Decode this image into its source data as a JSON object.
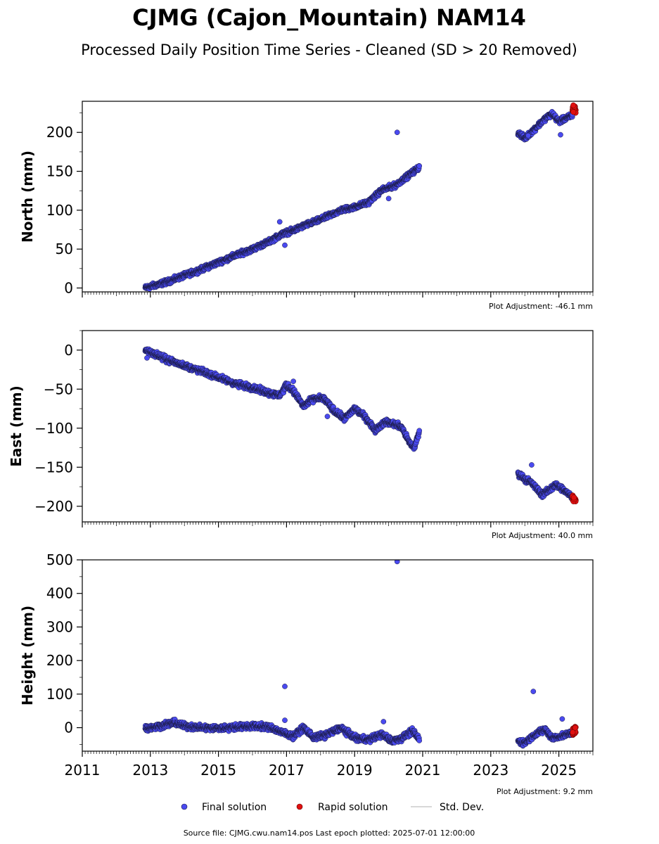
{
  "title": "CJMG (Cajon_Mountain) NAM14",
  "subtitle": "Processed Daily Position Time Series - Cleaned (SD > 20 Removed)",
  "legend": {
    "final": "Final solution",
    "rapid": "Rapid solution",
    "std": "Std. Dev."
  },
  "footer": "Source file: CJMG.cwu.nam14.pos  Last epoch plotted: 2025-07-01 12:00:00",
  "colors": {
    "final": "#4a4af0",
    "final_edge": "#1a1a40",
    "rapid": "#e01010",
    "std": "#cccccc"
  },
  "chart_data": [
    {
      "type": "scatter",
      "ylabel": "North (mm)",
      "note": "Plot Adjustment: -46.1 mm",
      "xlim": [
        2011,
        2026
      ],
      "ylim": [
        -5,
        240
      ],
      "x_ticks": [
        2011,
        2013,
        2015,
        2017,
        2019,
        2021,
        2023,
        2025
      ],
      "y_ticks": [
        0,
        50,
        100,
        150,
        200
      ],
      "show_x_labels": false,
      "series": [
        {
          "name": "Final solution",
          "role": "final",
          "anchors": [
            [
              2012.85,
              0
            ],
            [
              2013.5,
              8
            ],
            [
              2014.0,
              16
            ],
            [
              2014.5,
              24
            ],
            [
              2015.0,
              33
            ],
            [
              2015.5,
              42
            ],
            [
              2016.0,
              50
            ],
            [
              2016.5,
              60
            ],
            [
              2016.9,
              70
            ],
            [
              2017.2,
              74
            ],
            [
              2017.5,
              80
            ],
            [
              2018.0,
              88
            ],
            [
              2018.6,
              100
            ],
            [
              2019.0,
              104
            ],
            [
              2019.4,
              110
            ],
            [
              2019.8,
              126
            ],
            [
              2020.2,
              132
            ],
            [
              2020.5,
              142
            ],
            [
              2020.8,
              152
            ],
            [
              2020.9,
              155
            ]
          ],
          "anchors2": [
            [
              2023.8,
              200
            ],
            [
              2024.0,
              192
            ],
            [
              2024.3,
              205
            ],
            [
              2024.6,
              218
            ],
            [
              2024.8,
              224
            ],
            [
              2025.0,
              214
            ],
            [
              2025.2,
              218
            ],
            [
              2025.4,
              222
            ]
          ],
          "outliers": [
            [
              2020.25,
              200
            ],
            [
              2016.8,
              85
            ],
            [
              2016.95,
              55
            ],
            [
              2020.0,
              115
            ],
            [
              2024.1,
              196
            ],
            [
              2025.05,
              197
            ]
          ]
        },
        {
          "name": "Rapid solution",
          "role": "rapid",
          "x_range": [
            2025.4,
            2025.5
          ],
          "y_range": [
            225,
            235
          ]
        }
      ]
    },
    {
      "type": "scatter",
      "ylabel": "East (mm)",
      "note": "Plot Adjustment: 40.0 mm",
      "xlim": [
        2011,
        2026
      ],
      "ylim": [
        -220,
        25
      ],
      "x_ticks": [
        2011,
        2013,
        2015,
        2017,
        2019,
        2021,
        2023,
        2025
      ],
      "y_ticks": [
        0,
        -50,
        -100,
        -150,
        -200
      ],
      "show_x_labels": false,
      "series": [
        {
          "name": "Final solution",
          "role": "final",
          "anchors": [
            [
              2012.85,
              0
            ],
            [
              2013.5,
              -12
            ],
            [
              2014.0,
              -20
            ],
            [
              2014.5,
              -27
            ],
            [
              2015.0,
              -35
            ],
            [
              2015.5,
              -43
            ],
            [
              2016.0,
              -48
            ],
            [
              2016.5,
              -55
            ],
            [
              2016.8,
              -58
            ],
            [
              2017.0,
              -45
            ],
            [
              2017.2,
              -52
            ],
            [
              2017.5,
              -72
            ],
            [
              2017.8,
              -62
            ],
            [
              2018.1,
              -62
            ],
            [
              2018.4,
              -78
            ],
            [
              2018.7,
              -88
            ],
            [
              2019.0,
              -75
            ],
            [
              2019.3,
              -85
            ],
            [
              2019.6,
              -102
            ],
            [
              2019.9,
              -92
            ],
            [
              2020.2,
              -95
            ],
            [
              2020.4,
              -100
            ],
            [
              2020.6,
              -118
            ],
            [
              2020.75,
              -125
            ],
            [
              2020.9,
              -105
            ]
          ],
          "anchors2": [
            [
              2023.8,
              -158
            ],
            [
              2024.0,
              -165
            ],
            [
              2024.2,
              -170
            ],
            [
              2024.5,
              -185
            ],
            [
              2024.7,
              -180
            ],
            [
              2024.9,
              -172
            ],
            [
              2025.1,
              -178
            ],
            [
              2025.3,
              -185
            ],
            [
              2025.4,
              -188
            ]
          ],
          "outliers": [
            [
              2024.2,
              -147
            ],
            [
              2017.2,
              -40
            ],
            [
              2018.2,
              -85
            ],
            [
              2012.9,
              -10
            ]
          ]
        },
        {
          "name": "Rapid solution",
          "role": "rapid",
          "x_range": [
            2025.4,
            2025.5
          ],
          "y_range": [
            -195,
            -186
          ]
        }
      ]
    },
    {
      "type": "scatter",
      "ylabel": "Height (mm)",
      "note": "Plot Adjustment: 9.2 mm",
      "xlim": [
        2011,
        2026
      ],
      "ylim": [
        -70,
        500
      ],
      "x_ticks": [
        2011,
        2013,
        2015,
        2017,
        2019,
        2021,
        2023,
        2025
      ],
      "x_tick_labels": [
        "2011",
        "2013",
        "2015",
        "2017",
        "2019",
        "2021",
        "2023",
        "2025"
      ],
      "y_ticks": [
        0,
        100,
        200,
        300,
        400,
        500
      ],
      "show_x_labels": true,
      "series": [
        {
          "name": "Final solution",
          "role": "final",
          "anchors": [
            [
              2012.85,
              -2
            ],
            [
              2013.3,
              5
            ],
            [
              2013.7,
              15
            ],
            [
              2014.0,
              5
            ],
            [
              2014.5,
              0
            ],
            [
              2015.0,
              -2
            ],
            [
              2015.5,
              2
            ],
            [
              2016.0,
              5
            ],
            [
              2016.5,
              2
            ],
            [
              2016.9,
              -15
            ],
            [
              2017.2,
              -25
            ],
            [
              2017.5,
              0
            ],
            [
              2017.8,
              -30
            ],
            [
              2018.2,
              -20
            ],
            [
              2018.6,
              0
            ],
            [
              2019.0,
              -30
            ],
            [
              2019.4,
              -35
            ],
            [
              2019.8,
              -20
            ],
            [
              2020.1,
              -40
            ],
            [
              2020.4,
              -30
            ],
            [
              2020.7,
              -10
            ],
            [
              2020.9,
              -35
            ]
          ],
          "anchors2": [
            [
              2023.8,
              -40
            ],
            [
              2024.0,
              -45
            ],
            [
              2024.3,
              -20
            ],
            [
              2024.6,
              -5
            ],
            [
              2024.8,
              -30
            ],
            [
              2025.1,
              -25
            ],
            [
              2025.4,
              -15
            ]
          ],
          "outliers": [
            [
              2020.25,
              495
            ],
            [
              2016.95,
              123
            ],
            [
              2024.25,
              108
            ],
            [
              2016.95,
              22
            ],
            [
              2019.85,
              18
            ],
            [
              2025.1,
              26
            ]
          ]
        },
        {
          "name": "Rapid solution",
          "role": "rapid",
          "x_range": [
            2025.4,
            2025.5
          ],
          "y_range": [
            -22,
            3
          ]
        }
      ]
    }
  ]
}
